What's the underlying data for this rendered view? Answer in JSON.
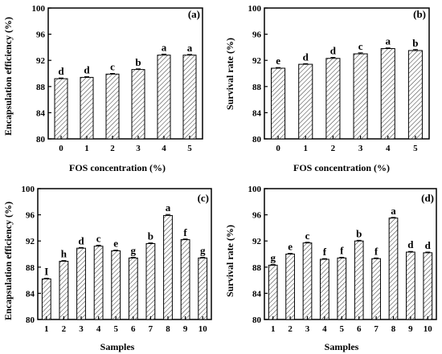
{
  "chart_data": [
    {
      "type": "bar",
      "panel_label": "(a)",
      "categories": [
        "0",
        "1",
        "2",
        "3",
        "4",
        "5"
      ],
      "values": [
        89.2,
        89.4,
        89.9,
        90.6,
        92.8,
        92.8
      ],
      "errors": [
        0.1,
        0.1,
        0.1,
        0.1,
        0.15,
        0.1
      ],
      "significance": [
        "d",
        "d",
        "c",
        "b",
        "a",
        "a"
      ],
      "xlabel": "FOS concentration (%)",
      "ylabel": "Encapsulation efficiency (%)",
      "ylim": [
        80,
        100
      ],
      "yticks": [
        "80",
        "84",
        "88",
        "92",
        "96",
        "100"
      ],
      "bar_fill": "hatched",
      "grid": false
    },
    {
      "type": "bar",
      "panel_label": "(b)",
      "categories": [
        "0",
        "1",
        "2",
        "3",
        "4",
        "5"
      ],
      "values": [
        90.8,
        91.4,
        92.3,
        93.0,
        93.8,
        93.5
      ],
      "errors": [
        0.1,
        0.1,
        0.15,
        0.15,
        0.1,
        0.15
      ],
      "significance": [
        "e",
        "d",
        "d",
        "c",
        "a",
        "b"
      ],
      "xlabel": "FOS concentration (%)",
      "ylabel": "Survival rate (%)",
      "ylim": [
        80,
        100
      ],
      "yticks": [
        "80",
        "84",
        "88",
        "92",
        "96",
        "100"
      ],
      "bar_fill": "hatched",
      "grid": false
    },
    {
      "type": "bar",
      "panel_label": "(c)",
      "categories": [
        "1",
        "2",
        "3",
        "4",
        "5",
        "6",
        "7",
        "8",
        "9",
        "10"
      ],
      "values": [
        86.2,
        88.9,
        90.9,
        91.2,
        90.5,
        89.4,
        91.6,
        95.9,
        92.2,
        89.4
      ],
      "errors": [
        0.1,
        0.1,
        0.1,
        0.15,
        0.1,
        0.1,
        0.1,
        0.15,
        0.1,
        0.1
      ],
      "significance": [
        "I",
        "h",
        "d",
        "c",
        "e",
        "g",
        "b",
        "a",
        "f",
        "g"
      ],
      "xlabel": "Samples",
      "ylabel": "Encapsulation efficiency (%)",
      "ylim": [
        80,
        100
      ],
      "yticks": [
        "80",
        "84",
        "88",
        "92",
        "96",
        "100"
      ],
      "bar_fill": "hatched",
      "grid": false
    },
    {
      "type": "bar",
      "panel_label": "(d)",
      "categories": [
        "1",
        "2",
        "3",
        "4",
        "5",
        "6",
        "7",
        "8",
        "9",
        "10"
      ],
      "values": [
        88.3,
        90.0,
        91.7,
        89.2,
        89.4,
        92.0,
        89.3,
        95.5,
        90.3,
        90.2
      ],
      "errors": [
        0.1,
        0.1,
        0.1,
        0.1,
        0.1,
        0.1,
        0.1,
        0.1,
        0.1,
        0.1
      ],
      "significance": [
        "g",
        "e",
        "c",
        "f",
        "f",
        "b",
        "f",
        "a",
        "d",
        "d"
      ],
      "xlabel": "Samples",
      "ylabel": "Survival rate (%)",
      "ylim": [
        80,
        100
      ],
      "yticks": [
        "80",
        "84",
        "88",
        "92",
        "96",
        "100"
      ],
      "bar_fill": "hatched",
      "grid": false
    }
  ]
}
